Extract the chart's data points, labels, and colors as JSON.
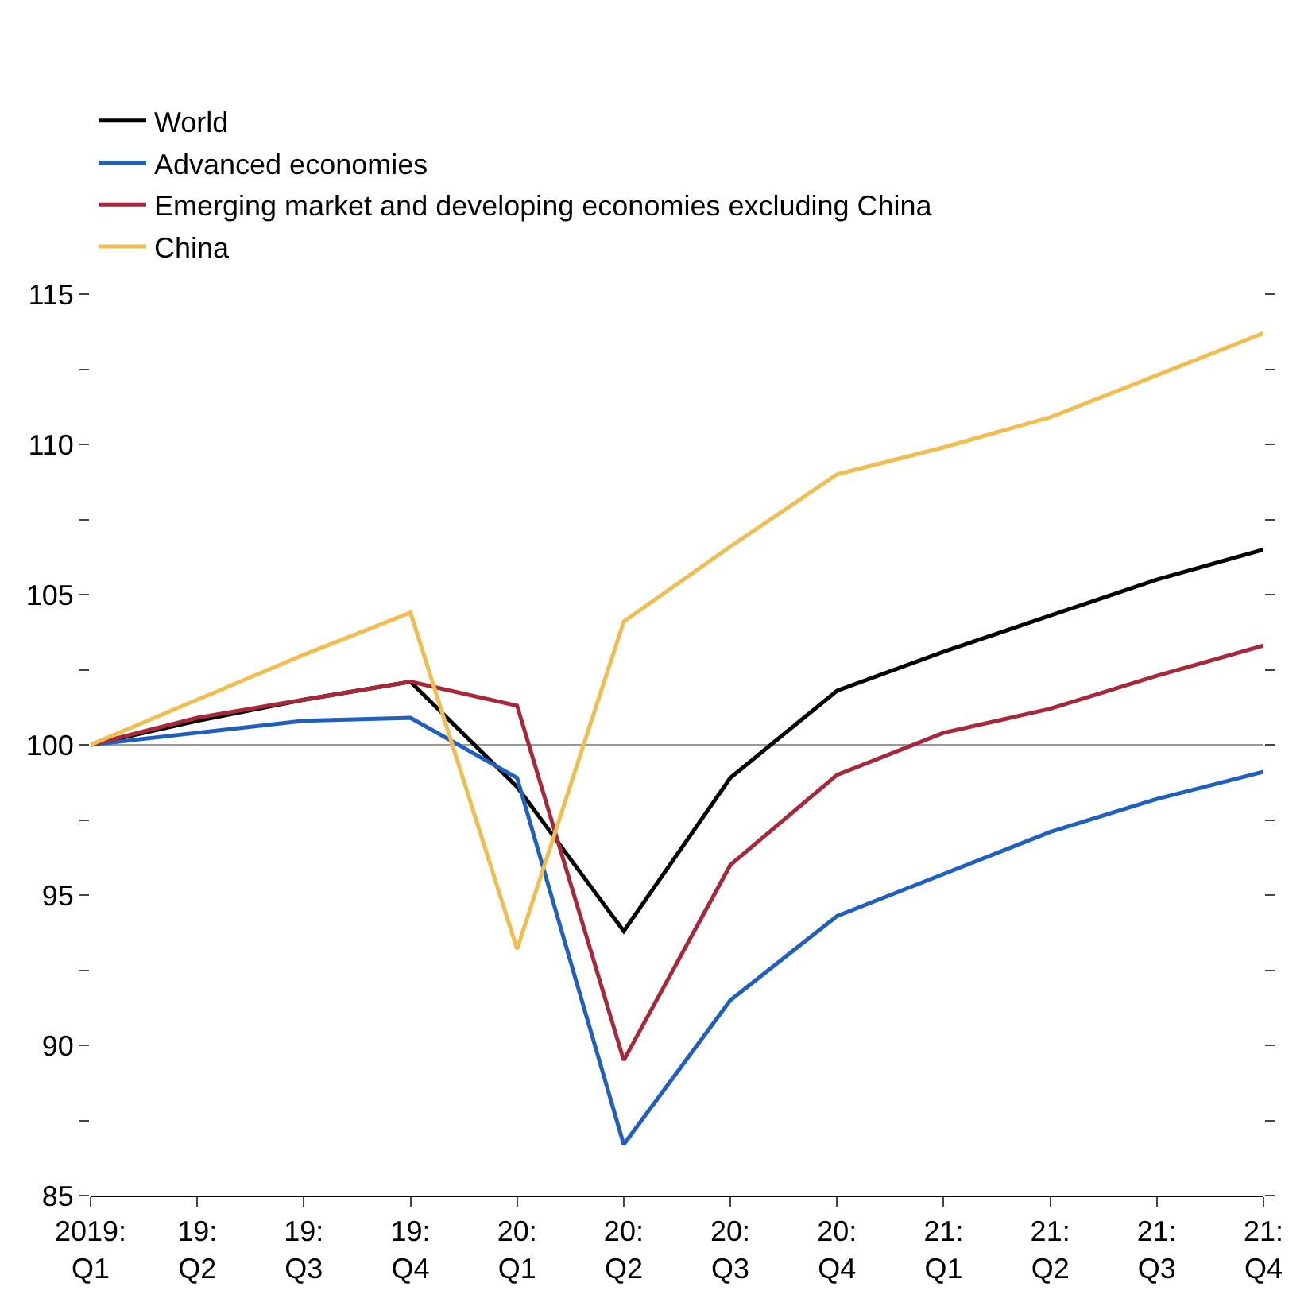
{
  "chart_data": {
    "type": "line",
    "categories": [
      "2019:\nQ1",
      "19:\nQ2",
      "19:\nQ3",
      "19:\nQ4",
      "20:\nQ1",
      "20:\nQ2",
      "20:\nQ3",
      "20:\nQ4",
      "21:\nQ1",
      "21:\nQ2",
      "21:\nQ3",
      "21:\nQ4"
    ],
    "series": [
      {
        "name": "World",
        "color": "#000000",
        "values": [
          100,
          100.8,
          101.5,
          102.1,
          98.6,
          93.8,
          98.9,
          101.8,
          103.1,
          104.3,
          105.5,
          106.5
        ]
      },
      {
        "name": "Advanced economies",
        "color": "#1f5fc0",
        "values": [
          100,
          100.4,
          100.8,
          100.9,
          98.9,
          86.7,
          91.5,
          94.3,
          95.7,
          97.1,
          98.2,
          99.1
        ]
      },
      {
        "name": "Emerging market and developing economies excluding China",
        "color": "#a8283a",
        "values": [
          100,
          100.9,
          101.5,
          102.1,
          101.3,
          89.5,
          96.0,
          99.0,
          100.4,
          101.2,
          102.3,
          103.3
        ]
      },
      {
        "name": "China",
        "color": "#f0bd4f",
        "values": [
          100,
          101.5,
          103.0,
          104.4,
          93.2,
          104.1,
          106.6,
          109.0,
          109.9,
          110.9,
          112.3,
          113.7
        ]
      }
    ],
    "ylim": [
      85,
      115
    ],
    "yticks": [
      85,
      {
        "value": 87.5,
        "label": null
      },
      90,
      {
        "value": 92.5,
        "label": null
      },
      95,
      {
        "value": 97.5,
        "label": null
      },
      100,
      {
        "value": 102.5,
        "label": null
      },
      105,
      {
        "value": 107.5,
        "label": null
      },
      110,
      {
        "value": 112.5,
        "label": null
      },
      115
    ],
    "ref_lines": [
      {
        "axis": "y",
        "value": 100,
        "color": "#999999"
      }
    ],
    "grid": false,
    "legend": "top left",
    "marker": "none",
    "line_style": "solid"
  }
}
